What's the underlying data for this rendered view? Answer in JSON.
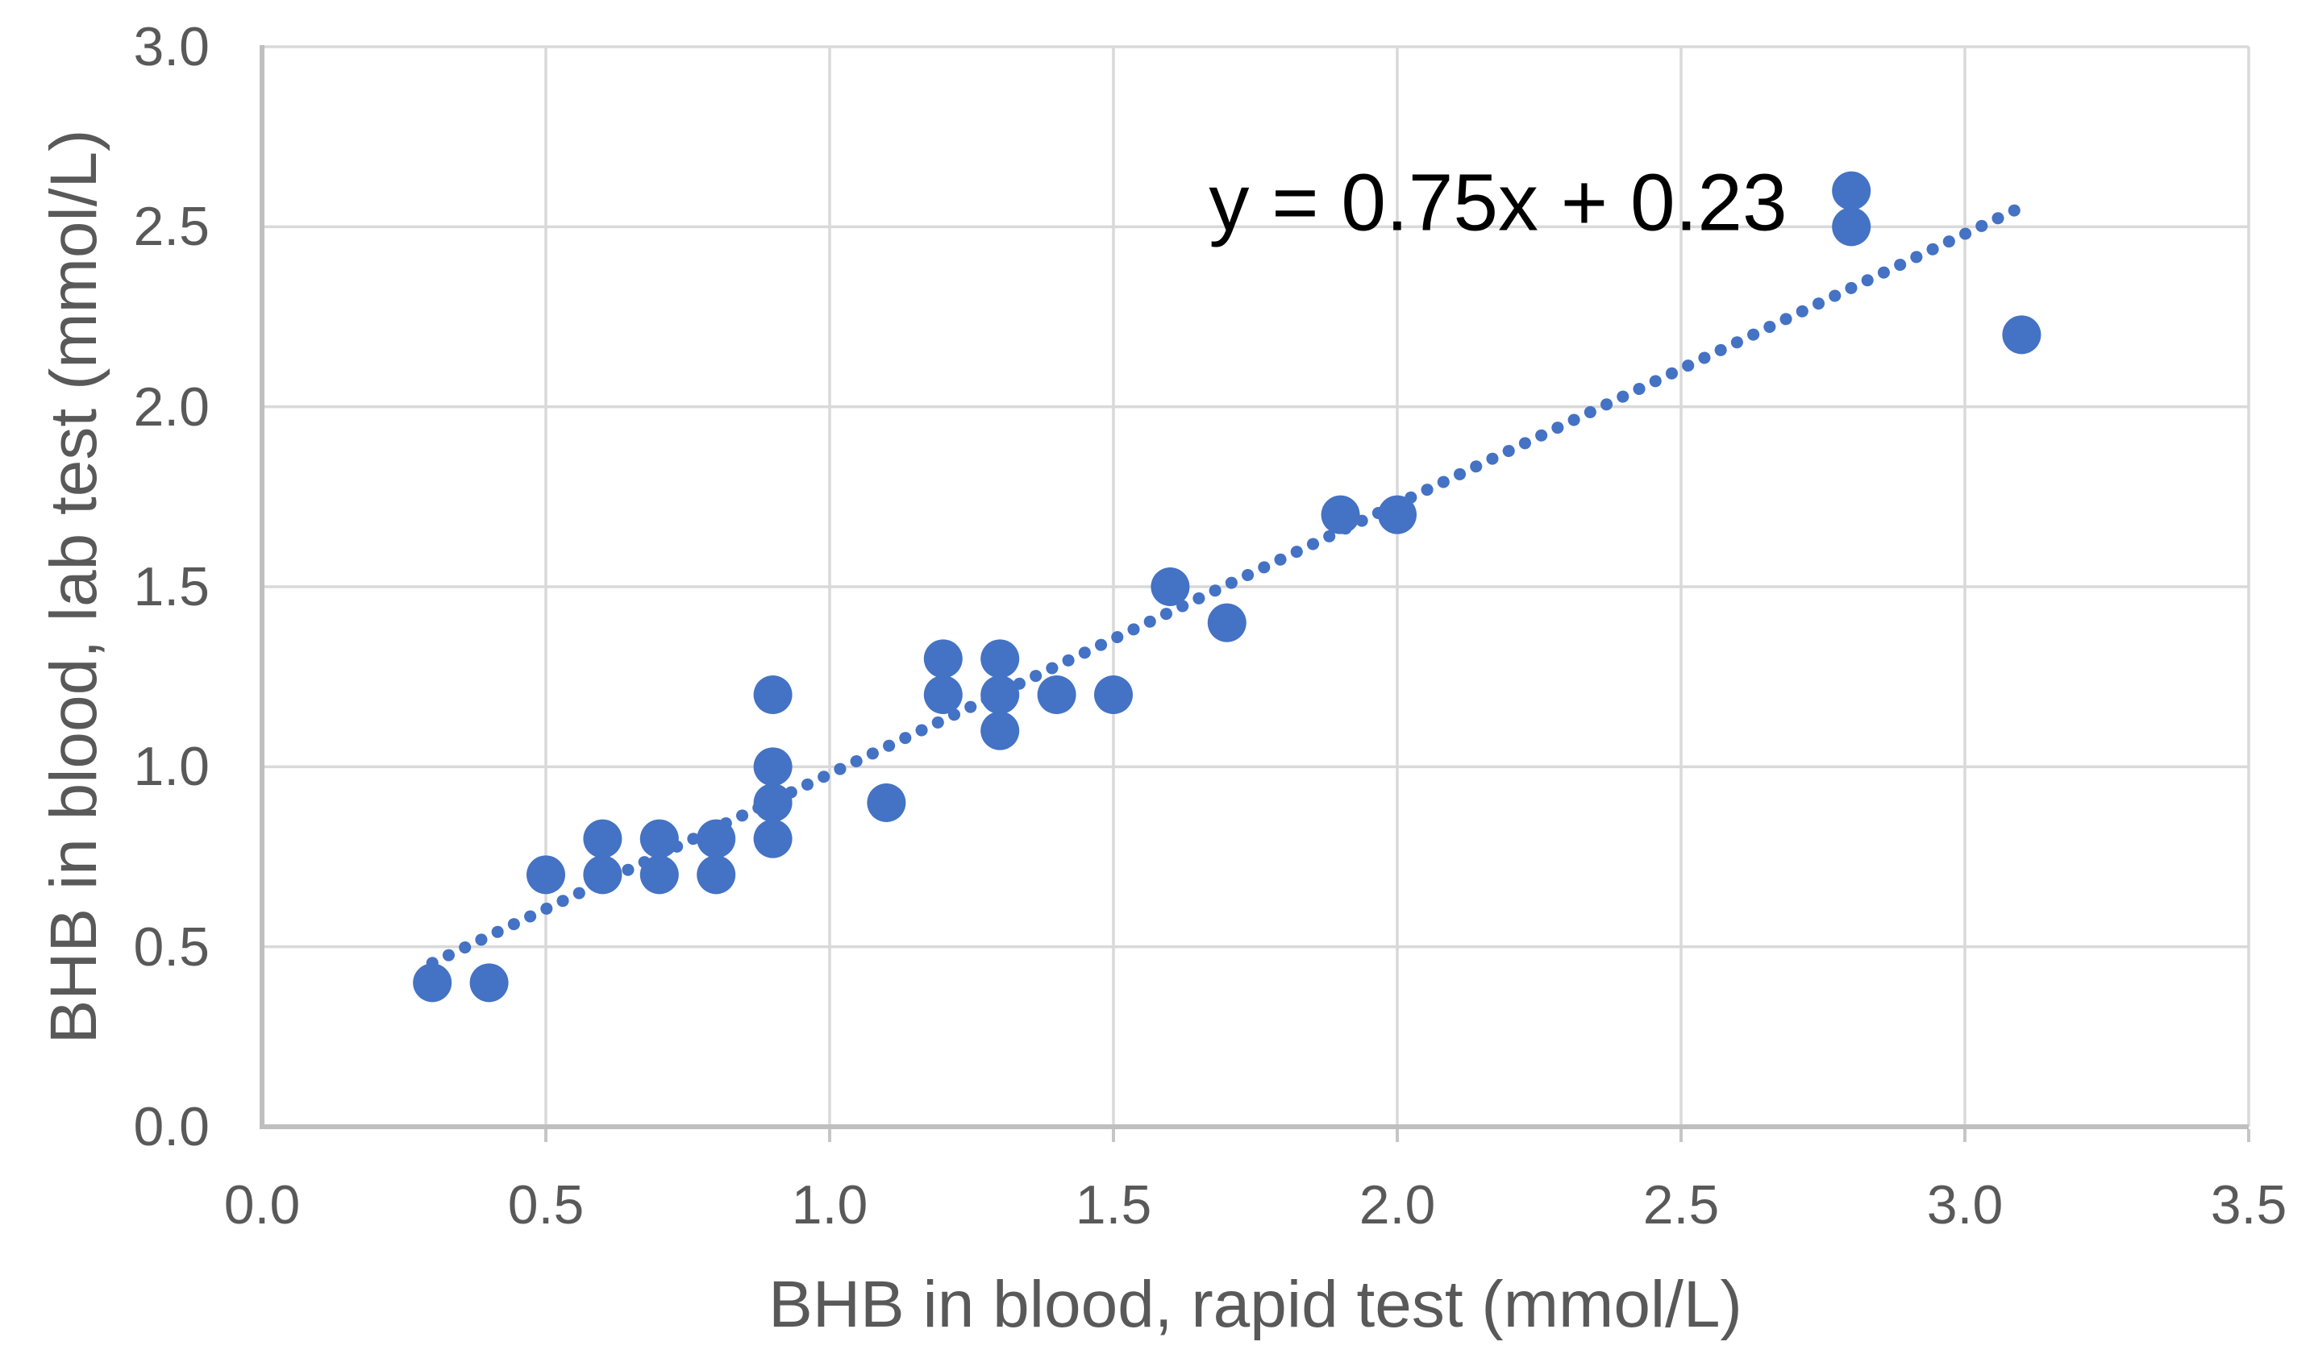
{
  "chart_data": {
    "type": "scatter",
    "title": "",
    "xlabel": "BHB in blood, rapid test (mmol/L)",
    "ylabel": "BHB in blood, lab test (mmol/L)",
    "xlim": [
      0.0,
      3.5
    ],
    "ylim": [
      0.0,
      3.0
    ],
    "x_tick_values": [
      0.0,
      0.5,
      1.0,
      1.5,
      2.0,
      2.5,
      3.0,
      3.5
    ],
    "x_tick_labels": [
      "0.0",
      "0.5",
      "1.0",
      "1.5",
      "2.0",
      "2.5",
      "3.0",
      "3.5"
    ],
    "y_tick_values": [
      0.0,
      0.5,
      1.0,
      1.5,
      2.0,
      2.5,
      3.0
    ],
    "y_tick_labels": [
      "0.0",
      "0.5",
      "1.0",
      "1.5",
      "2.0",
      "2.5",
      "3.0"
    ],
    "grid": true,
    "legend": "none",
    "points": [
      [
        0.3,
        0.4
      ],
      [
        0.4,
        0.4
      ],
      [
        0.5,
        0.7
      ],
      [
        0.6,
        0.7
      ],
      [
        0.6,
        0.8
      ],
      [
        0.7,
        0.7
      ],
      [
        0.7,
        0.8
      ],
      [
        0.8,
        0.7
      ],
      [
        0.8,
        0.8
      ],
      [
        0.9,
        0.8
      ],
      [
        0.9,
        0.9
      ],
      [
        0.9,
        1.0
      ],
      [
        0.9,
        1.2
      ],
      [
        1.1,
        0.9
      ],
      [
        1.2,
        1.2
      ],
      [
        1.2,
        1.3
      ],
      [
        1.3,
        1.1
      ],
      [
        1.3,
        1.2
      ],
      [
        1.3,
        1.3
      ],
      [
        1.4,
        1.2
      ],
      [
        1.5,
        1.2
      ],
      [
        1.6,
        1.5
      ],
      [
        1.7,
        1.4
      ],
      [
        1.9,
        1.7
      ],
      [
        2.0,
        1.7
      ],
      [
        2.8,
        2.5
      ],
      [
        2.8,
        2.6
      ],
      [
        3.1,
        2.2
      ]
    ],
    "trendline": {
      "equation_label": "y = 0.75x + 0.23",
      "slope": 0.75,
      "intercept": 0.23,
      "x_start": 0.3,
      "x_end": 3.1,
      "style": "dotted"
    },
    "colors": {
      "points": "#4472C4",
      "trendline": "#4472C4",
      "gridlines": "#D9D9D9",
      "axis_lines": "#BFBFBF",
      "tick_marks": "#C6C6C6",
      "tick_text": "#595959",
      "axis_title_text": "#595959",
      "equation_text": "#000000",
      "background": "#FFFFFF"
    }
  }
}
